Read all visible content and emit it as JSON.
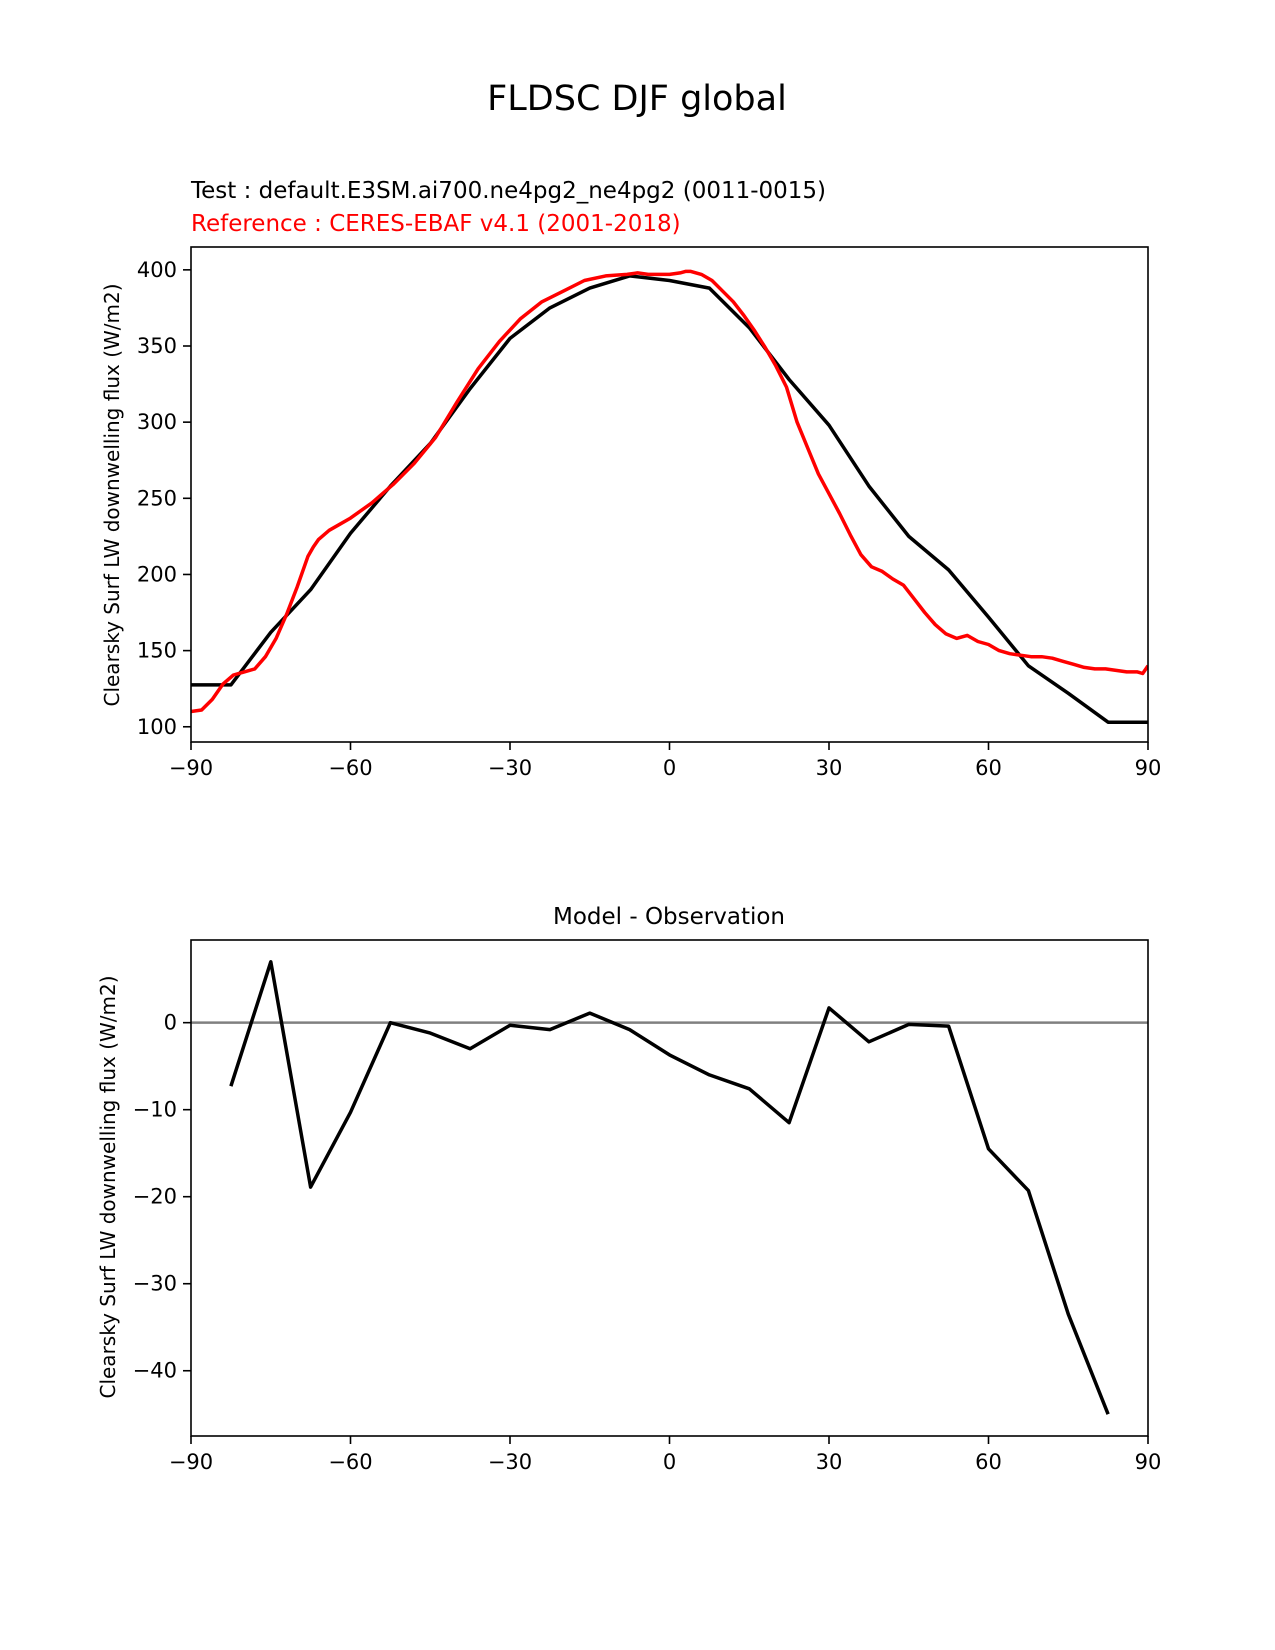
{
  "figure": {
    "title": "FLDSC DJF global"
  },
  "chart_data": [
    {
      "type": "line",
      "title_test": "Test : default.E3SM.ai700.ne4pg2_ne4pg2 (0011-0015)",
      "title_reference": "Reference : CERES-EBAF v4.1 (2001-2018)",
      "xlabel": "",
      "ylabel": "Clearsky Surf LW downwelling flux (W/m2)",
      "xlim": [
        -90,
        90
      ],
      "ylim": [
        90,
        415
      ],
      "xticks": [
        -90,
        -60,
        -30,
        0,
        30,
        60,
        90
      ],
      "xtick_labels": [
        "−90",
        "−60",
        "−30",
        "0",
        "30",
        "60",
        "90"
      ],
      "yticks": [
        100,
        150,
        200,
        250,
        300,
        350,
        400
      ],
      "ytick_labels": [
        "100",
        "150",
        "200",
        "250",
        "300",
        "350",
        "400"
      ],
      "grid": false,
      "series": [
        {
          "color": "#000000",
          "x": [
            -90,
            -82.5,
            -75,
            -67.5,
            -60,
            -52.5,
            -45,
            -37.5,
            -30,
            -22.5,
            -15,
            -7.5,
            0,
            7.5,
            15,
            22.5,
            30,
            37.5,
            45,
            52.5,
            60,
            67.5,
            75,
            82.5,
            90
          ],
          "y": [
            127.5,
            127.5,
            162,
            190,
            227,
            258,
            286,
            322,
            355,
            375,
            388,
            396,
            393,
            388,
            362,
            328,
            298,
            258,
            225,
            203,
            172,
            140,
            122,
            103,
            103
          ]
        },
        {
          "color": "#ff0000",
          "x": [
            -90,
            -88,
            -86,
            -84,
            -82,
            -80,
            -78,
            -76,
            -74,
            -72,
            -70,
            -68,
            -67,
            -66,
            -64,
            -62,
            -60,
            -56,
            -52,
            -48,
            -44,
            -40,
            -36,
            -32,
            -28,
            -24,
            -20,
            -16,
            -12,
            -8,
            -6,
            -4,
            -2,
            0,
            2,
            3,
            4,
            6,
            8,
            10,
            12,
            14,
            16,
            18,
            20,
            22,
            24,
            26,
            28,
            30,
            32,
            34,
            36,
            38,
            40,
            42,
            44,
            46,
            48,
            50,
            52,
            54,
            56,
            58,
            60,
            62,
            64,
            66,
            68,
            70,
            72,
            74,
            76,
            78,
            80,
            82,
            84,
            86,
            88,
            89,
            90
          ],
          "y": [
            110,
            111,
            118,
            128,
            134,
            136,
            138,
            146,
            158,
            174,
            192,
            212,
            218,
            223,
            229,
            233,
            237,
            247,
            259,
            273,
            290,
            313,
            335,
            353,
            368,
            379,
            386,
            393,
            396,
            397,
            398,
            397,
            397,
            397,
            398,
            399,
            399,
            397,
            393,
            386,
            379,
            370,
            360,
            349,
            337,
            323,
            300,
            283,
            266,
            253,
            240,
            226,
            213,
            205,
            202,
            197,
            193,
            184,
            175,
            167,
            161,
            158,
            160,
            156,
            154,
            150,
            148,
            147,
            146,
            146,
            145,
            143,
            141,
            139,
            138,
            138,
            137,
            136,
            136,
            135,
            140
          ]
        }
      ]
    },
    {
      "type": "line",
      "title": "Model - Observation",
      "xlabel": "",
      "ylabel": "Clearsky Surf LW downwelling flux (W/m2)",
      "xlim": [
        -90,
        90
      ],
      "ylim": [
        -47.5,
        9.5
      ],
      "xticks": [
        -90,
        -60,
        -30,
        0,
        30,
        60,
        90
      ],
      "xtick_labels": [
        "−90",
        "−60",
        "−30",
        "0",
        "30",
        "60",
        "90"
      ],
      "yticks": [
        -40,
        -30,
        -20,
        -10,
        0
      ],
      "ytick_labels": [
        "−40",
        "−30",
        "−20",
        "−10",
        "0"
      ],
      "grid": false,
      "reference_line": {
        "y": 0,
        "color": "#808080"
      },
      "series": [
        {
          "color": "#000000",
          "x": [
            -82.5,
            -75,
            -67.5,
            -60,
            -52.5,
            -45,
            -37.5,
            -30,
            -22.5,
            -15,
            -7.5,
            0,
            7.5,
            15,
            22.5,
            30,
            37.5,
            45,
            52.5,
            60,
            67.5,
            75,
            82.5
          ],
          "y": [
            -7.3,
            7.0,
            -18.9,
            -10.3,
            0.0,
            -1.2,
            -3.0,
            -0.3,
            -0.8,
            1.1,
            -0.8,
            -3.7,
            -6.0,
            -7.6,
            -11.5,
            1.7,
            -2.2,
            -0.2,
            -0.4,
            -14.5,
            -19.3,
            -33.5,
            -45.0
          ]
        }
      ]
    }
  ]
}
